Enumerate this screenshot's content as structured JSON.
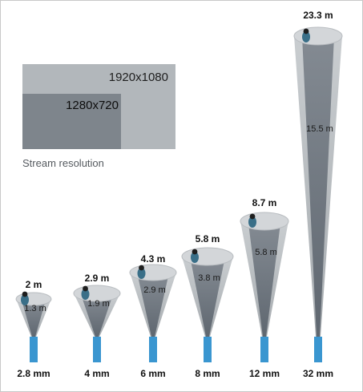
{
  "legend": {
    "outer_resolution": "1920x1080",
    "inner_resolution": "1280x720",
    "caption": "Stream resolution",
    "colors": {
      "outer": "#b2b7bb",
      "inner": "#7e858c"
    }
  },
  "colors": {
    "cone_light": "#c3c7ca",
    "cone_dark": "#68707a",
    "mount": "#3a96d0"
  },
  "cameras": [
    {
      "focal_length": "2.8 mm",
      "width_1920": "2 m",
      "width_1280": "1.3 m"
    },
    {
      "focal_length": "4 mm",
      "width_1920": "2.9 m",
      "width_1280": "1.9 m"
    },
    {
      "focal_length": "6 mm",
      "width_1920": "4.3 m",
      "width_1280": "2.9 m"
    },
    {
      "focal_length": "8 mm",
      "width_1920": "5.8 m",
      "width_1280": "3.8 m"
    },
    {
      "focal_length": "12 mm",
      "width_1920": "8.7 m",
      "width_1280": "5.8 m"
    },
    {
      "focal_length": "32 mm",
      "width_1920": "23.3 m",
      "width_1280": "15.5 m"
    }
  ]
}
